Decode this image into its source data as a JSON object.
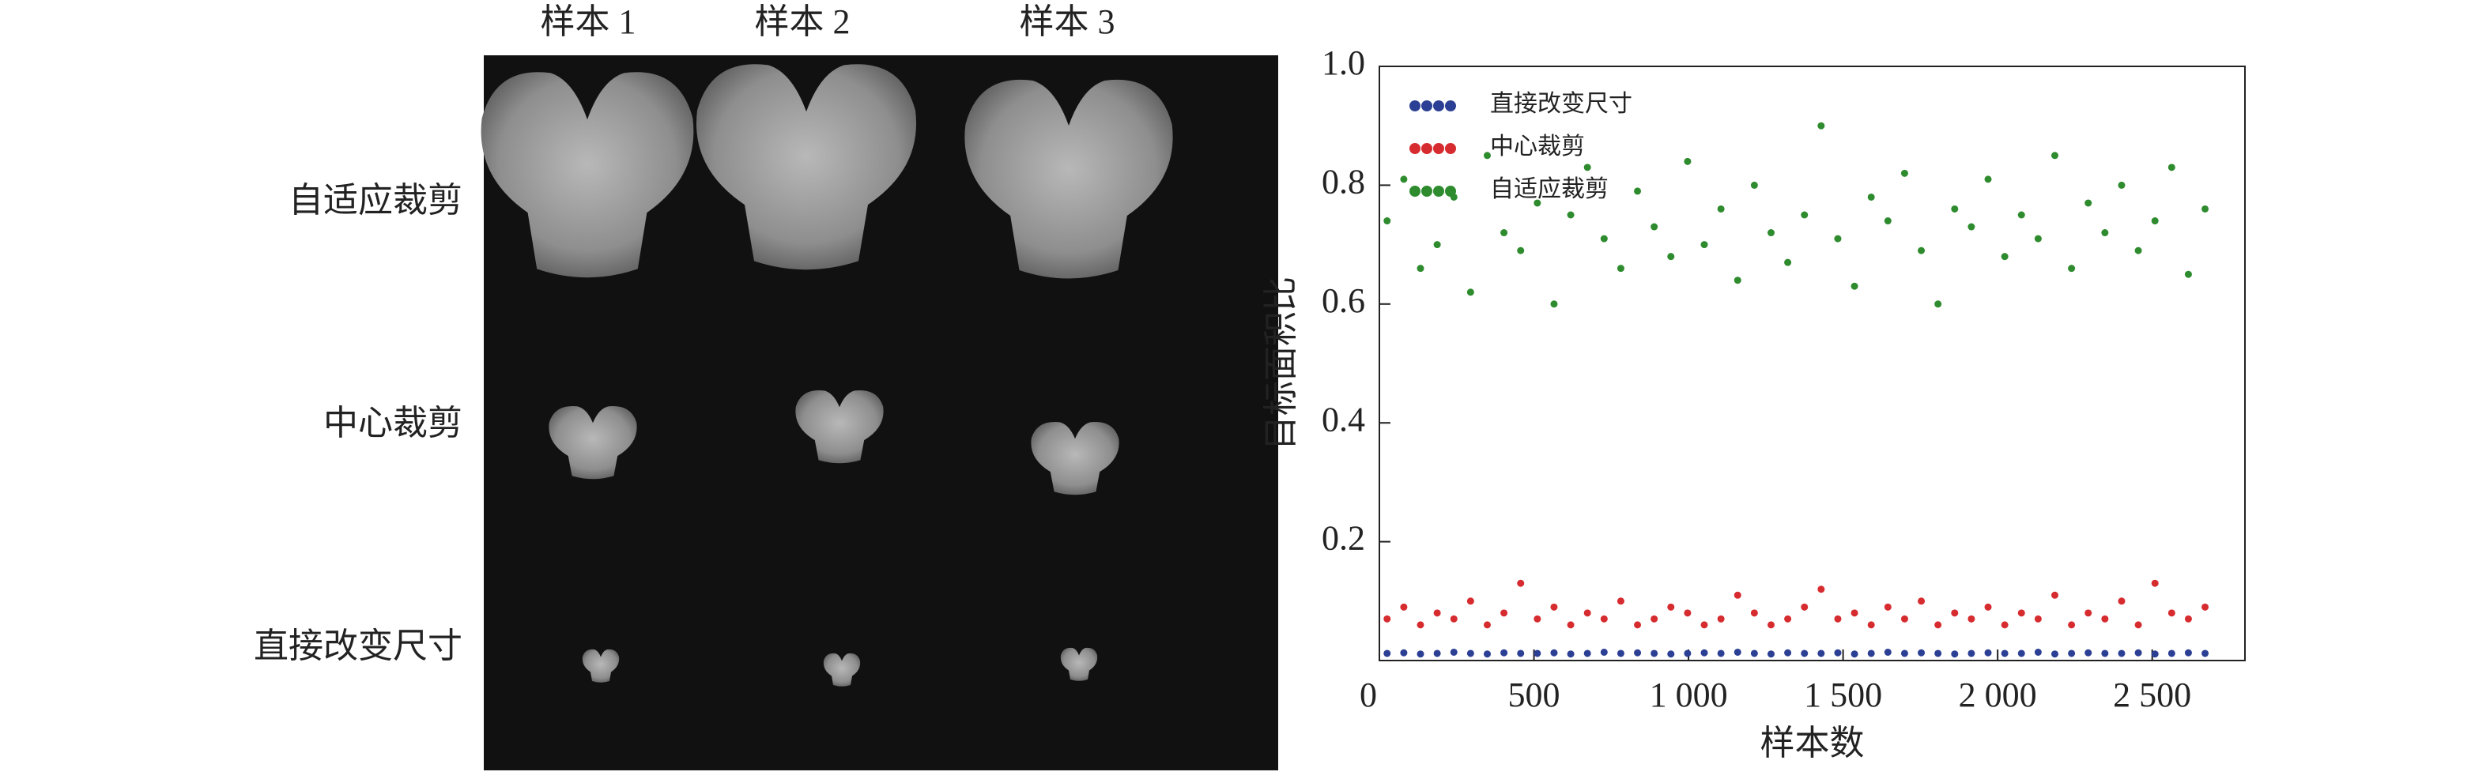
{
  "panel": {
    "columns": [
      "样本 1",
      "样本 2",
      "样本 3"
    ],
    "rows": [
      "自适应裁剪",
      "中心裁剪",
      "直接改变尺寸"
    ]
  },
  "chart_data": {
    "type": "scatter",
    "xlabel": "样本数",
    "ylabel": "目标面积比",
    "xlim": [
      0,
      2800
    ],
    "ylim": [
      0,
      1
    ],
    "xticks": [
      0,
      500,
      {
        "value": 1000,
        "label": "1 000"
      },
      {
        "value": 1500,
        "label": "1 500"
      },
      {
        "value": 2000,
        "label": "2 000"
      },
      {
        "value": 2500,
        "label": "2 500"
      }
    ],
    "yticks": [
      0.2,
      0.4,
      0.6,
      0.8,
      {
        "value": 1,
        "label": "1.0"
      }
    ],
    "legend": "upper left",
    "x": [
      25,
      79,
      133,
      187,
      241,
      295,
      349,
      403,
      457,
      511,
      565,
      619,
      673,
      727,
      781,
      835,
      889,
      943,
      997,
      1051,
      1105,
      1159,
      1213,
      1267,
      1321,
      1375,
      1429,
      1483,
      1537,
      1591,
      1645,
      1699,
      1753,
      1807,
      1861,
      1915,
      1969,
      2023,
      2077,
      2131,
      2185,
      2239,
      2293,
      2347,
      2401,
      2455,
      2509,
      2563,
      2617,
      2671
    ],
    "series": [
      {
        "name": "直接改变尺寸",
        "color": "#2b3f94",
        "values": [
          0.012,
          0.013,
          0.011,
          0.012,
          0.014,
          0.012,
          0.011,
          0.013,
          0.012,
          0.012,
          0.013,
          0.011,
          0.012,
          0.014,
          0.012,
          0.013,
          0.012,
          0.011,
          0.012,
          0.013,
          0.012,
          0.014,
          0.012,
          0.011,
          0.013,
          0.012,
          0.012,
          0.013,
          0.011,
          0.012,
          0.014,
          0.012,
          0.013,
          0.012,
          0.011,
          0.012,
          0.013,
          0.012,
          0.012,
          0.014,
          0.011,
          0.012,
          0.013,
          0.012,
          0.012,
          0.013,
          0.011,
          0.012,
          0.013,
          0.012
        ]
      },
      {
        "name": "中心裁剪",
        "color": "#d62b2f",
        "values": [
          0.07,
          0.09,
          0.06,
          0.08,
          0.07,
          0.1,
          0.06,
          0.08,
          0.13,
          0.07,
          0.09,
          0.06,
          0.08,
          0.07,
          0.1,
          0.06,
          0.07,
          0.09,
          0.08,
          0.06,
          0.07,
          0.11,
          0.08,
          0.06,
          0.07,
          0.09,
          0.12,
          0.07,
          0.08,
          0.06,
          0.09,
          0.07,
          0.1,
          0.06,
          0.08,
          0.07,
          0.09,
          0.06,
          0.08,
          0.07,
          0.11,
          0.06,
          0.08,
          0.07,
          0.1,
          0.06,
          0.13,
          0.08,
          0.07,
          0.09
        ]
      },
      {
        "name": "自适应裁剪",
        "color": "#2e8b2e",
        "values": [
          0.74,
          0.81,
          0.66,
          0.7,
          0.78,
          0.62,
          0.85,
          0.72,
          0.69,
          0.77,
          0.6,
          0.75,
          0.83,
          0.71,
          0.66,
          0.79,
          0.73,
          0.68,
          0.84,
          0.7,
          0.76,
          0.64,
          0.8,
          0.72,
          0.67,
          0.75,
          0.9,
          0.71,
          0.63,
          0.78,
          0.74,
          0.82,
          0.69,
          0.6,
          0.76,
          0.73,
          0.81,
          0.68,
          0.75,
          0.71,
          0.85,
          0.66,
          0.77,
          0.72,
          0.8,
          0.69,
          0.74,
          0.83,
          0.65,
          0.76
        ]
      }
    ]
  }
}
